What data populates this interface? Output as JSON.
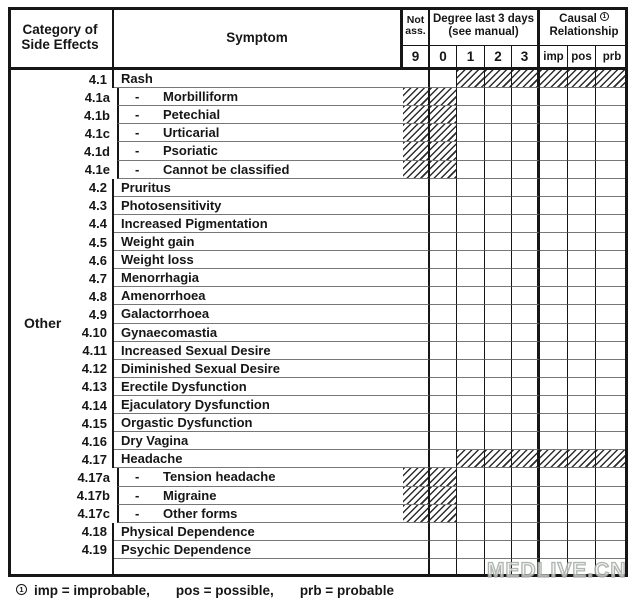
{
  "table": {
    "header": {
      "category_line1": "Category of",
      "category_line2": "Side Effects",
      "symptom": "Symptom",
      "not_line1": "Not",
      "not_line2": "ass.",
      "degree_line1": "Degree last 3 days",
      "degree_line2": "(see manual)",
      "causal_word": "Causal",
      "causal_mark": "1",
      "causal_line2": "Relationship",
      "score_columns": [
        "9",
        "0",
        "1",
        "2",
        "3"
      ],
      "causal_columns": [
        "imp",
        "pos",
        "prb"
      ]
    },
    "category_label": "Other",
    "sub_dash": "-",
    "rows": [
      {
        "num": "4.1",
        "label": "Rash",
        "sub": false,
        "hatch": "degree"
      },
      {
        "num": "4.1a",
        "label": "Morbilliform",
        "sub": true,
        "hatch": "notass"
      },
      {
        "num": "4.1b",
        "label": "Petechial",
        "sub": true,
        "hatch": "notass"
      },
      {
        "num": "4.1c",
        "label": "Urticarial",
        "sub": true,
        "hatch": "notass"
      },
      {
        "num": "4.1d",
        "label": "Psoriatic",
        "sub": true,
        "hatch": "notass"
      },
      {
        "num": "4.1e",
        "label": "Cannot be classified",
        "sub": true,
        "hatch": "notass"
      },
      {
        "num": "4.2",
        "label": "Pruritus",
        "sub": false,
        "hatch": "none"
      },
      {
        "num": "4.3",
        "label": "Photosensitivity",
        "sub": false,
        "hatch": "none"
      },
      {
        "num": "4.4",
        "label": "Increased Pigmentation",
        "sub": false,
        "hatch": "none"
      },
      {
        "num": "4.5",
        "label": "Weight gain",
        "sub": false,
        "hatch": "none"
      },
      {
        "num": "4.6",
        "label": "Weight loss",
        "sub": false,
        "hatch": "none"
      },
      {
        "num": "4.7",
        "label": "Menorrhagia",
        "sub": false,
        "hatch": "none"
      },
      {
        "num": "4.8",
        "label": "Amenorrhoea",
        "sub": false,
        "hatch": "none"
      },
      {
        "num": "4.9",
        "label": "Galactorrhoea",
        "sub": false,
        "hatch": "none"
      },
      {
        "num": "4.10",
        "label": "Gynaecomastia",
        "sub": false,
        "hatch": "none"
      },
      {
        "num": "4.11",
        "label": "Increased Sexual Desire",
        "sub": false,
        "hatch": "none"
      },
      {
        "num": "4.12",
        "label": "Diminished Sexual Desire",
        "sub": false,
        "hatch": "none"
      },
      {
        "num": "4.13",
        "label": "Erectile Dysfunction",
        "sub": false,
        "hatch": "none"
      },
      {
        "num": "4.14",
        "label": "Ejaculatory Dysfunction",
        "sub": false,
        "hatch": "none"
      },
      {
        "num": "4.15",
        "label": "Orgastic Dysfunction",
        "sub": false,
        "hatch": "none"
      },
      {
        "num": "4.16",
        "label": "Dry Vagina",
        "sub": false,
        "hatch": "none"
      },
      {
        "num": "4.17",
        "label": "Headache",
        "sub": false,
        "hatch": "degree"
      },
      {
        "num": "4.17a",
        "label": "Tension headache",
        "sub": true,
        "hatch": "notass"
      },
      {
        "num": "4.17b",
        "label": "Migraine",
        "sub": true,
        "hatch": "notass"
      },
      {
        "num": "4.17c",
        "label": "Other forms",
        "sub": true,
        "hatch": "notass"
      },
      {
        "num": "4.18",
        "label": "Physical Dependence",
        "sub": false,
        "hatch": "none"
      },
      {
        "num": "4.19",
        "label": "Psychic Dependence",
        "sub": false,
        "hatch": "none"
      },
      {
        "num": "",
        "label": "",
        "sub": false,
        "hatch": "none"
      }
    ]
  },
  "footnote": {
    "mark": "1",
    "segments": [
      "imp = improbable,",
      "pos = possible,",
      "prb = probable"
    ]
  },
  "watermark": "MEDLIVE.CN",
  "colors": {
    "ink": "#161616",
    "row_line": "#777777",
    "watermark_gray": "#9ea49e",
    "paper": "#ffffff"
  }
}
